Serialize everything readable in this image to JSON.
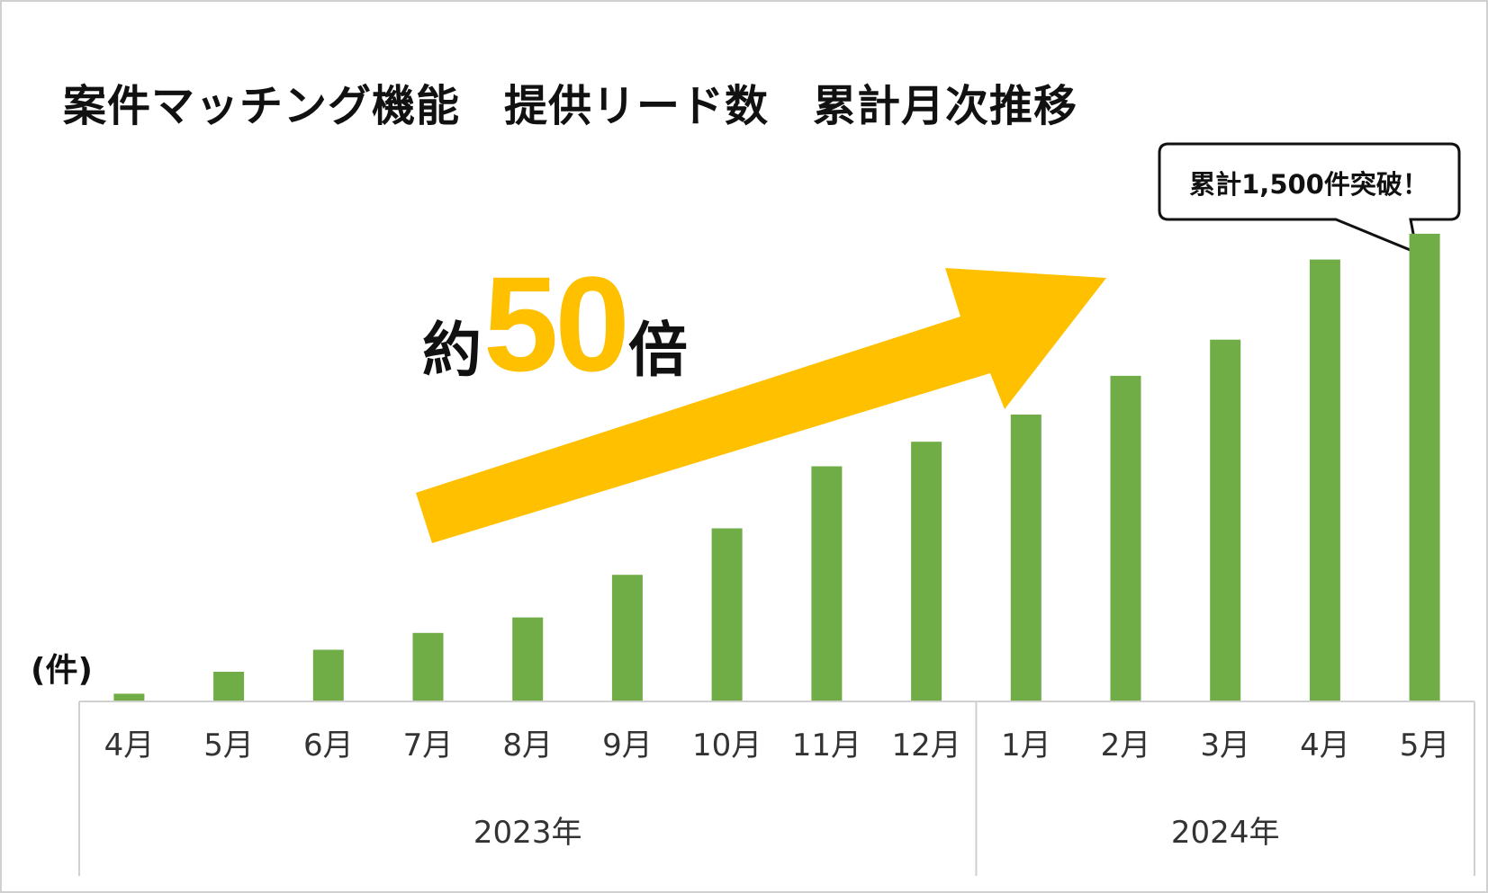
{
  "title": "案件マッチング機能　提供リード数　累計月次推移",
  "unit_label": "(件)",
  "callout": "累計1,500件突破！",
  "multiplier": {
    "prefix": "約",
    "number": "50",
    "suffix": "倍"
  },
  "colors": {
    "bar": "#70ad47",
    "arrow": "#ffc000",
    "axis": "#d0d0d0",
    "callout_border": "#111111"
  },
  "chart_data": {
    "type": "bar",
    "title": "案件マッチング機能　提供リード数　累計月次推移",
    "ylabel": "(件)",
    "xlabel": "",
    "categories": [
      "4月",
      "5月",
      "6月",
      "7月",
      "8月",
      "9月",
      "10月",
      "11月",
      "12月",
      "1月",
      "2月",
      "3月",
      "4月",
      "5月"
    ],
    "groups": [
      {
        "label": "2023年",
        "count": 9
      },
      {
        "label": "2024年",
        "count": 5
      }
    ],
    "values": [
      30,
      115,
      200,
      265,
      325,
      490,
      670,
      910,
      1005,
      1110,
      1260,
      1400,
      1710,
      1810
    ],
    "ylim": [
      0,
      1900
    ],
    "grid": false,
    "annotations": [
      "累計1,500件突破！",
      "約50倍"
    ]
  }
}
